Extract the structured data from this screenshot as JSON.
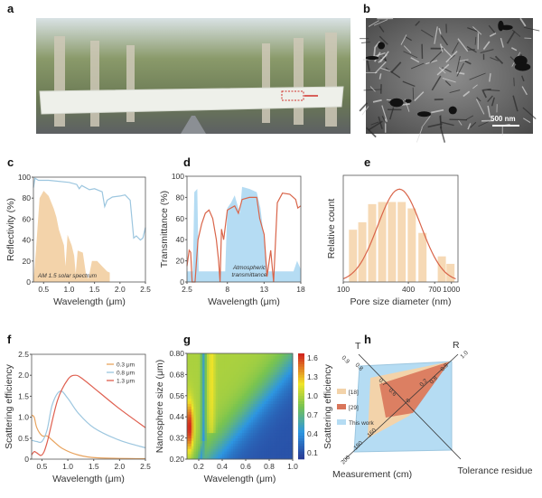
{
  "panels": {
    "a": {
      "label": "a"
    },
    "b": {
      "label": "b",
      "scale_bar": "500 nm"
    },
    "c": {
      "label": "c"
    },
    "d": {
      "label": "d"
    },
    "e": {
      "label": "e"
    },
    "f": {
      "label": "f"
    },
    "g": {
      "label": "g"
    },
    "h": {
      "label": "h"
    }
  },
  "colors": {
    "reflect": "#9cc6df",
    "solar": "#f3d3aa",
    "trans": "#d9654a",
    "atmos": "#b5dcf3",
    "bar": "#f6d9b5",
    "fit": "#d9654a",
    "s03": "#e8a35e",
    "s08": "#9cc6df",
    "s13": "#df5f4f"
  },
  "chart_data": [
    {
      "panel": "c",
      "type": "line",
      "xlabel": "Wavelength (μm)",
      "ylabel": "Reflectivity (%)",
      "xlim": [
        0.3,
        2.5
      ],
      "ylim": [
        0,
        100
      ],
      "xticks": [
        "0.5",
        "1.0",
        "1.5",
        "2.0",
        "2.5"
      ],
      "yticks": [
        "0",
        "20",
        "40",
        "60",
        "80",
        "100"
      ],
      "annotation": "AM 1.5 solar spectrum",
      "series": [
        {
          "kind": "line",
          "points": [
            [
              0.3,
              90
            ],
            [
              0.33,
              99
            ],
            [
              0.4,
              97
            ],
            [
              0.6,
              97
            ],
            [
              1.0,
              95
            ],
            [
              1.15,
              93
            ],
            [
              1.2,
              89
            ],
            [
              1.25,
              92
            ],
            [
              1.4,
              88
            ],
            [
              1.5,
              89
            ],
            [
              1.65,
              86
            ],
            [
              1.7,
              72
            ],
            [
              1.75,
              78
            ],
            [
              1.85,
              81
            ],
            [
              2.0,
              82
            ],
            [
              2.1,
              83
            ],
            [
              2.2,
              78
            ],
            [
              2.27,
              42
            ],
            [
              2.32,
              44
            ],
            [
              2.4,
              40
            ],
            [
              2.45,
              42
            ],
            [
              2.5,
              52
            ]
          ]
        },
        {
          "kind": "area",
          "name": "AM 1.5 solar spectrum",
          "points": [
            [
              0.3,
              0
            ],
            [
              0.35,
              30
            ],
            [
              0.42,
              80
            ],
            [
              0.5,
              87
            ],
            [
              0.6,
              82
            ],
            [
              0.7,
              70
            ],
            [
              0.75,
              62
            ],
            [
              0.8,
              50
            ],
            [
              0.9,
              35
            ],
            [
              0.93,
              15
            ],
            [
              0.97,
              45
            ],
            [
              1.05,
              35
            ],
            [
              1.1,
              25
            ],
            [
              1.13,
              8
            ],
            [
              1.17,
              30
            ],
            [
              1.27,
              28
            ],
            [
              1.33,
              8
            ],
            [
              1.38,
              3
            ],
            [
              1.45,
              20
            ],
            [
              1.55,
              20
            ],
            [
              1.65,
              15
            ],
            [
              1.75,
              10
            ],
            [
              1.8,
              9
            ],
            [
              1.8,
              0
            ]
          ]
        }
      ]
    },
    {
      "panel": "d",
      "type": "line",
      "xlabel": "Wavelength (μm)",
      "ylabel": "Transmittance (%)",
      "xlim": [
        2.5,
        18
      ],
      "ylim": [
        0,
        100
      ],
      "xticks": [
        "2.5",
        "8",
        "13",
        "18"
      ],
      "yticks": [
        "0",
        "20",
        "40",
        "60",
        "80",
        "100"
      ],
      "annotation": [
        "Atmospheric",
        "transmittance"
      ],
      "series": [
        {
          "kind": "area",
          "name": "Atmospheric transmittance",
          "points": [
            [
              2.5,
              0
            ],
            [
              2.5,
              10
            ],
            [
              3.3,
              10
            ],
            [
              3.5,
              85
            ],
            [
              3.9,
              88
            ],
            [
              4.1,
              10
            ],
            [
              7.7,
              10
            ],
            [
              8,
              70
            ],
            [
              8.5,
              75
            ],
            [
              9,
              82
            ],
            [
              9.7,
              65
            ],
            [
              10,
              90
            ],
            [
              11,
              88
            ],
            [
              12,
              85
            ],
            [
              12.5,
              70
            ],
            [
              13,
              40
            ],
            [
              13.5,
              10
            ],
            [
              16,
              10
            ],
            [
              17,
              10
            ],
            [
              17.5,
              20
            ],
            [
              18,
              12
            ],
            [
              18,
              0
            ]
          ]
        },
        {
          "kind": "line",
          "points": [
            [
              2.5,
              15
            ],
            [
              2.8,
              30
            ],
            [
              3.0,
              28
            ],
            [
              3.2,
              0
            ],
            [
              3.6,
              0
            ],
            [
              4.0,
              40
            ],
            [
              4.5,
              55
            ],
            [
              5,
              65
            ],
            [
              5.5,
              68
            ],
            [
              6,
              60
            ],
            [
              6.5,
              40
            ],
            [
              6.8,
              20
            ],
            [
              7,
              0
            ],
            [
              7.2,
              50
            ],
            [
              7.5,
              40
            ],
            [
              8,
              68
            ],
            [
              9,
              72
            ],
            [
              9.5,
              65
            ],
            [
              10,
              78
            ],
            [
              11,
              80
            ],
            [
              12,
              80
            ],
            [
              12.4,
              60
            ],
            [
              13,
              45
            ],
            [
              13.4,
              5
            ],
            [
              13.9,
              30
            ],
            [
              14.3,
              0
            ],
            [
              14.8,
              75
            ],
            [
              15.5,
              84
            ],
            [
              16.5,
              83
            ],
            [
              17.3,
              78
            ],
            [
              17.6,
              70
            ],
            [
              18,
              72
            ]
          ]
        }
      ]
    },
    {
      "panel": "e",
      "type": "bar",
      "xlabel": "Pore size diameter (nm)",
      "ylabel": "Relative count",
      "xscale": "log",
      "xlim": [
        100,
        1150
      ],
      "ylim": [
        0,
        1
      ],
      "xticks": [
        "100",
        "400",
        "700",
        "1000"
      ],
      "bars": [
        [
          123,
          0.49
        ],
        [
          150,
          0.56
        ],
        [
          185,
          0.73
        ],
        [
          229,
          0.75
        ],
        [
          282,
          0.75
        ],
        [
          347,
          0.75
        ],
        [
          430,
          0.69
        ],
        [
          540,
          0.46
        ],
        [
          815,
          0.24
        ],
        [
          980,
          0.17
        ]
      ],
      "fit": {
        "kind": "lognormal",
        "peak_nm": 330,
        "peak_value": 0.87
      }
    },
    {
      "panel": "f",
      "type": "line",
      "xlabel": "Wavelength (μm)",
      "ylabel": "Scattering efficiency",
      "xlim": [
        0.3,
        2.5
      ],
      "ylim": [
        0,
        2.5
      ],
      "xticks": [
        "0.5",
        "1.0",
        "1.5",
        "2.0",
        "2.5"
      ],
      "yticks": [
        "0",
        "0.5",
        "1.0",
        "1.5",
        "2.0",
        "2.5"
      ],
      "legend": "top-right",
      "series": [
        {
          "name": "0.3 μm",
          "points": [
            [
              0.3,
              1.05
            ],
            [
              0.35,
              1.0
            ],
            [
              0.4,
              0.75
            ],
            [
              0.5,
              0.56
            ],
            [
              0.6,
              0.55
            ],
            [
              0.7,
              0.45
            ],
            [
              0.9,
              0.25
            ],
            [
              1.2,
              0.1
            ],
            [
              1.6,
              0.03
            ],
            [
              2.5,
              0.01
            ]
          ]
        },
        {
          "name": "0.8 μm",
          "points": [
            [
              0.3,
              0.45
            ],
            [
              0.4,
              0.42
            ],
            [
              0.5,
              0.42
            ],
            [
              0.6,
              0.7
            ],
            [
              0.7,
              1.3
            ],
            [
              0.85,
              1.62
            ],
            [
              1.0,
              1.45
            ],
            [
              1.2,
              1.1
            ],
            [
              1.5,
              0.75
            ],
            [
              2.0,
              0.45
            ],
            [
              2.5,
              0.27
            ]
          ]
        },
        {
          "name": "1.3 μm",
          "points": [
            [
              0.3,
              0.1
            ],
            [
              0.35,
              0.18
            ],
            [
              0.4,
              0.15
            ],
            [
              0.5,
              0.1
            ],
            [
              0.6,
              0.4
            ],
            [
              0.8,
              1.4
            ],
            [
              1.0,
              1.9
            ],
            [
              1.15,
              2.0
            ],
            [
              1.3,
              1.9
            ],
            [
              1.6,
              1.6
            ],
            [
              2.0,
              1.2
            ],
            [
              2.5,
              0.75
            ]
          ]
        }
      ]
    },
    {
      "panel": "g",
      "type": "heatmap",
      "xlabel": "Wavelength (μm)",
      "ylabel": "Nanosphere size (μm)",
      "colorbar_label": "Scattering efficiency",
      "xlim": [
        0.1,
        1.0
      ],
      "ylim": [
        0.2,
        0.8
      ],
      "clim": [
        0,
        1.6
      ],
      "xticks": [
        "0.2",
        "0.4",
        "0.6",
        "0.8",
        "1.0"
      ],
      "yticks": [
        "0.20",
        "0.32",
        "0.44",
        "0.56",
        "0.68",
        "0.80"
      ],
      "cticks": [
        "0.1",
        "0.4",
        "0.7",
        "1.0",
        "1.3",
        "1.6"
      ]
    },
    {
      "panel": "h",
      "type": "radar",
      "axes": [
        "T",
        "R",
        "Measurement (cm)",
        "Tolerance residue"
      ],
      "axis_ticks": {
        "T": [
          "0.9",
          "0.8",
          "0.7",
          "0.6"
        ],
        "R": [
          "1.0",
          "0.9",
          "0.8"
        ],
        "Measurement": [
          "200",
          "180",
          "160"
        ],
        "residue": [
          "0.2",
          "8"
        ]
      },
      "legend": "left",
      "series": [
        {
          "name": "[18]"
        },
        {
          "name": "[29]"
        },
        {
          "name": "This work"
        }
      ]
    }
  ]
}
